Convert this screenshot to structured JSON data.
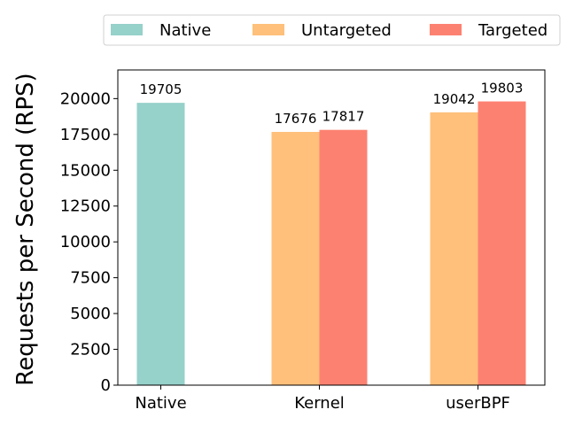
{
  "chart_data": {
    "type": "bar",
    "categories": [
      "Native",
      "Kernel",
      "userBPF"
    ],
    "series": [
      {
        "name": "Native",
        "color": "#96d1ca",
        "values": [
          19705,
          null,
          null
        ]
      },
      {
        "name": "Untargeted",
        "color": "#fec07b",
        "values": [
          null,
          17676,
          19042
        ]
      },
      {
        "name": "Targeted",
        "color": "#fd8171",
        "values": [
          null,
          17817,
          19803
        ]
      }
    ],
    "ylabel": "Requests per Second (RPS)",
    "xlabel": "",
    "ylim": [
      0,
      22000
    ],
    "yticks": [
      0,
      2500,
      5000,
      7500,
      10000,
      12500,
      15000,
      17500,
      20000
    ],
    "legend": "top, outside plot, horizontal",
    "grid": false
  }
}
